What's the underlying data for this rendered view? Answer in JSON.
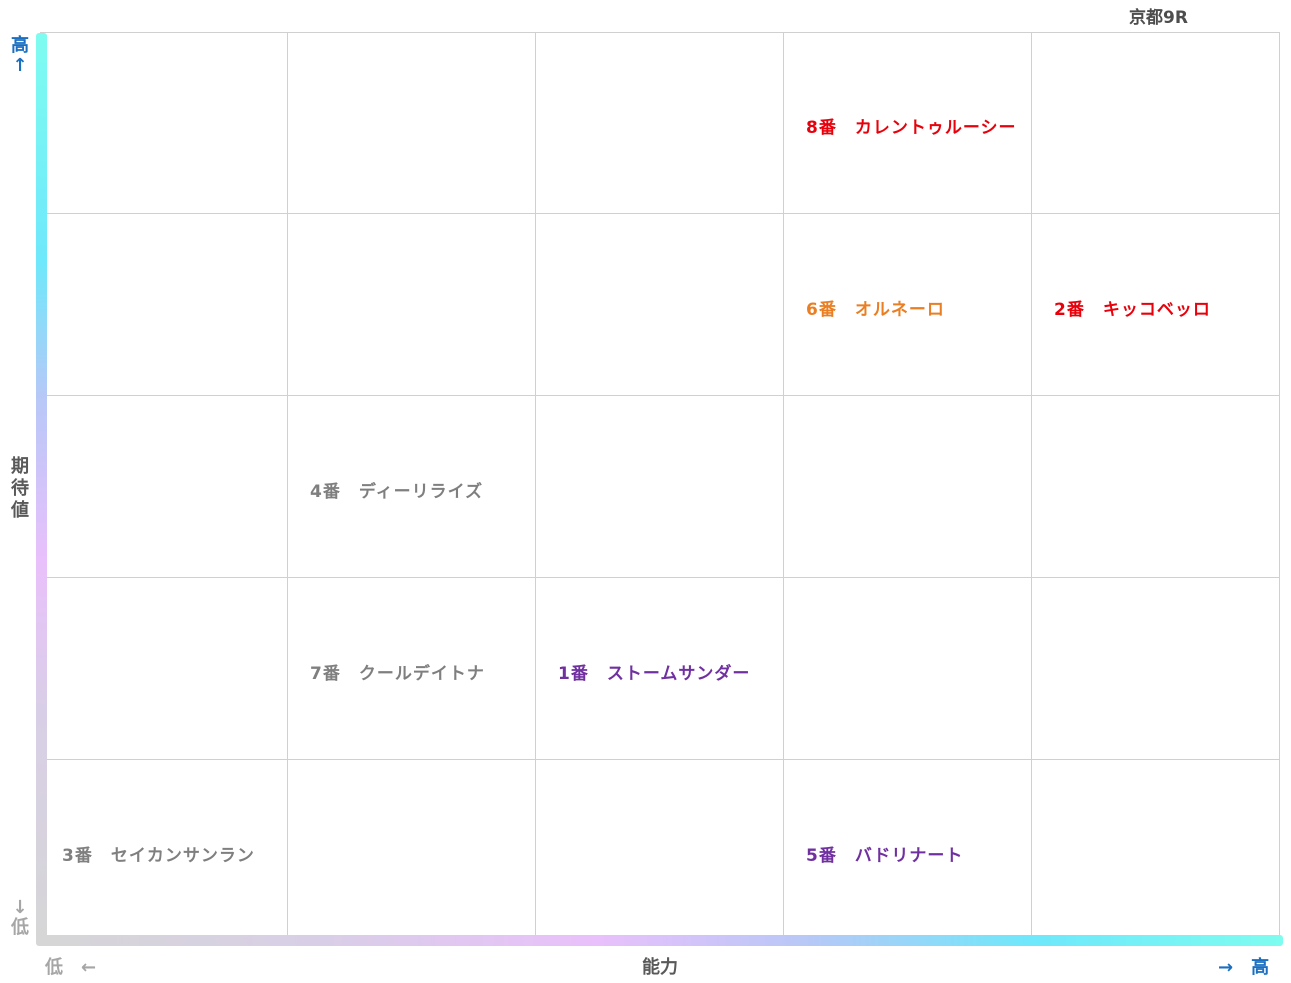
{
  "race_label": "京都9R",
  "axes": {
    "y_title_chars": [
      "期",
      "待",
      "値"
    ],
    "y_high": {
      "char": "高",
      "arrow": "↑"
    },
    "y_low": {
      "arrow": "↓",
      "char": "低"
    },
    "x_title": "能力",
    "x_low": "低　←",
    "x_high": "→　高",
    "colors": {
      "high": "#1a6fc0",
      "low": "#a6a6a6"
    }
  },
  "chart_data": {
    "type": "table",
    "rows": 5,
    "cols": 5,
    "x_axis": "能力",
    "y_axis": "期待値",
    "horses": [
      {
        "label": "8番　カレントゥルーシー",
        "row": 1,
        "col": 4,
        "color": "#e8000b"
      },
      {
        "label": "6番　オルネーロ",
        "row": 2,
        "col": 4,
        "color": "#ea7e22"
      },
      {
        "label": "2番　キッコベッロ",
        "row": 2,
        "col": 5,
        "color": "#e8000b"
      },
      {
        "label": "4番　ディーリライズ",
        "row": 3,
        "col": 2,
        "color": "#7f7f7f"
      },
      {
        "label": "7番　クールデイトナ",
        "row": 4,
        "col": 2,
        "color": "#7f7f7f"
      },
      {
        "label": "1番　ストームサンダー",
        "row": 4,
        "col": 3,
        "color": "#7030a0"
      },
      {
        "label": "3番　セイカンサンラン",
        "row": 5,
        "col": 1,
        "color": "#7f7f7f"
      },
      {
        "label": "5番　バドリナート",
        "row": 5,
        "col": 4,
        "color": "#7030a0"
      }
    ]
  }
}
